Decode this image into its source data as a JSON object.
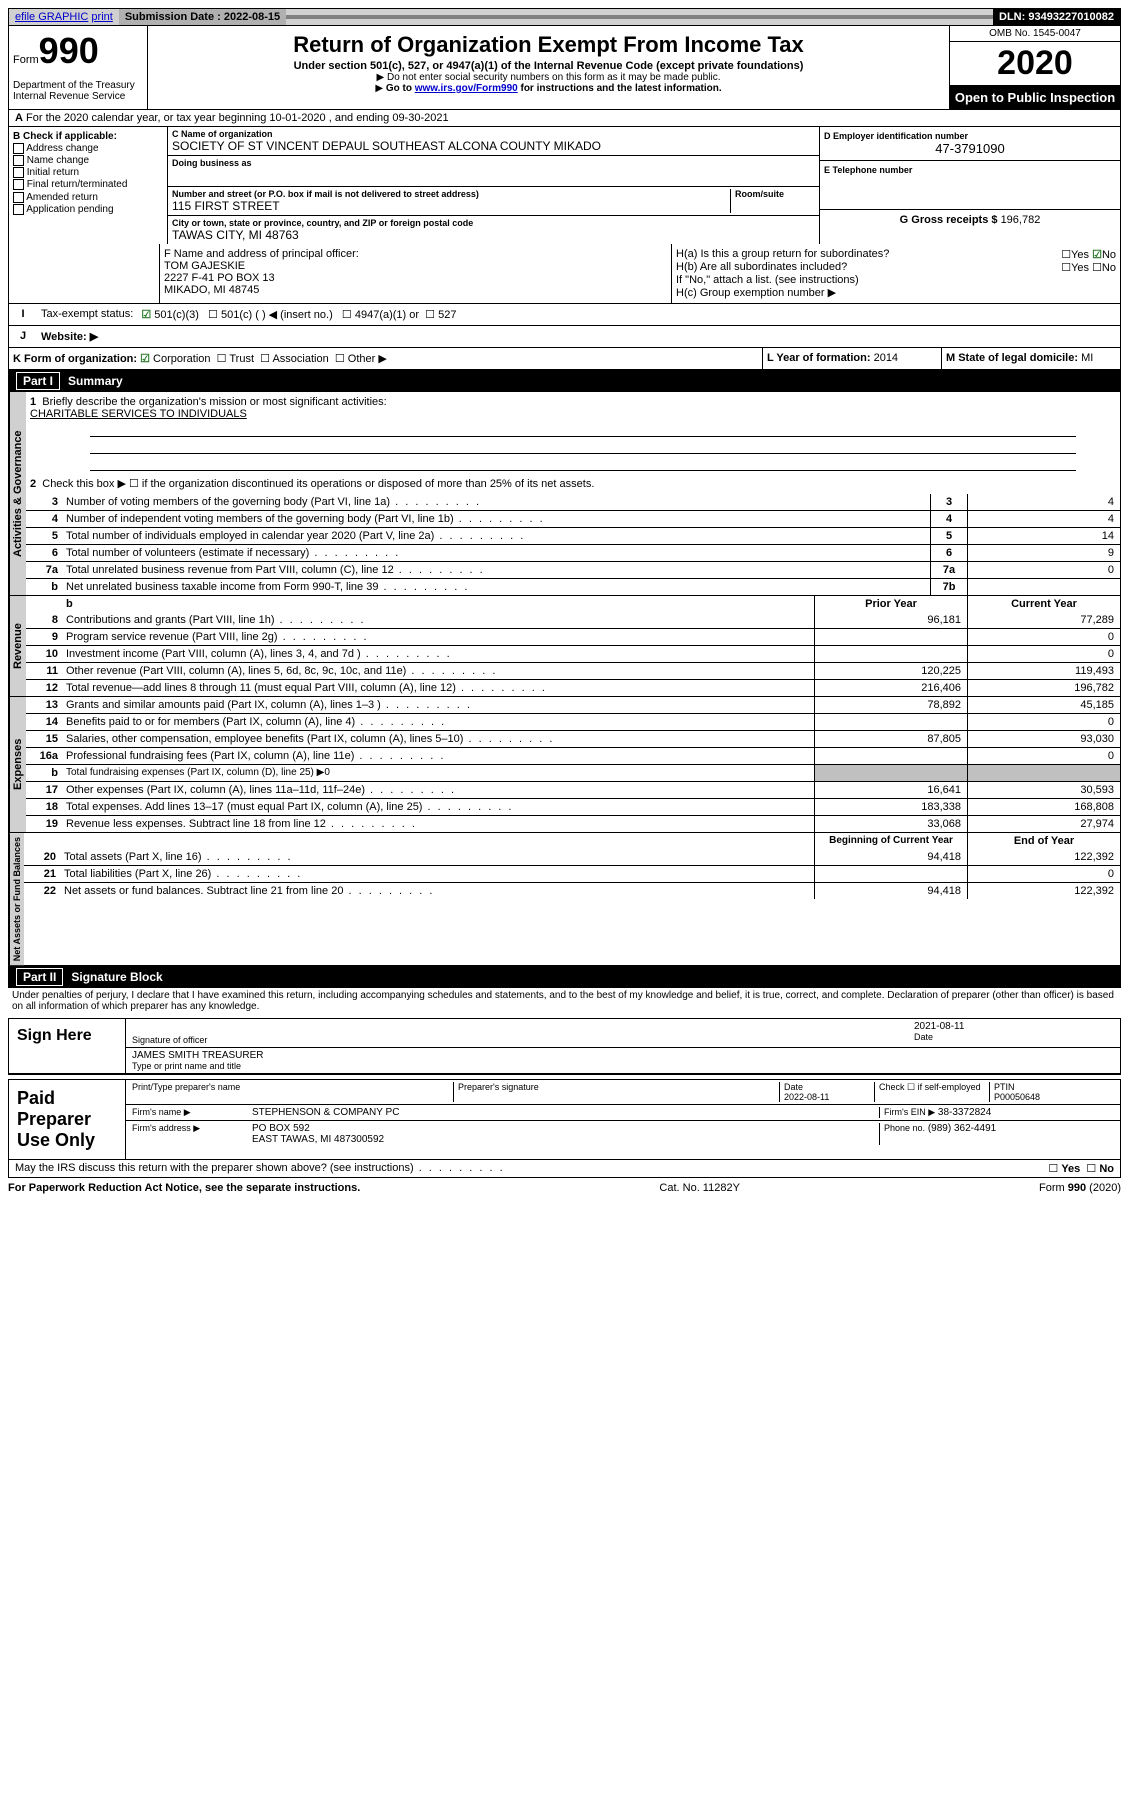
{
  "topbar": {
    "efile": "efile GRAPHIC",
    "print": "print",
    "sub_label": "Submission Date : 2022-08-15",
    "dln": "DLN: 93493227010082"
  },
  "header": {
    "form_label": "Form",
    "form_no": "990",
    "title": "Return of Organization Exempt From Income Tax",
    "sub1": "Under section 501(c), 527, or 4947(a)(1) of the Internal Revenue Code (except private foundations)",
    "sub2": "Do not enter social security numbers on this form as it may be made public.",
    "sub3a": "Go to ",
    "sub3_link": "www.irs.gov/Form990",
    "sub3b": " for instructions and the latest information.",
    "omb": "OMB No. 1545-0047",
    "year": "2020",
    "open": "Open to Public Inspection",
    "dept": "Department of the Treasury",
    "irs": "Internal Revenue Service"
  },
  "period": "For the 2020 calendar year, or tax year beginning 10-01-2020    , and ending 09-30-2021",
  "boxB": {
    "header": "B Check if applicable:",
    "items": [
      "Address change",
      "Name change",
      "Initial return",
      "Final return/terminated",
      "Amended return",
      "Application pending"
    ]
  },
  "boxC": {
    "label": "C Name of organization",
    "name": "SOCIETY OF ST VINCENT DEPAUL SOUTHEAST ALCONA COUNTY MIKADO",
    "dba_label": "Doing business as",
    "addr_label": "Number and street (or P.O. box if mail is not delivered to street address)",
    "room_label": "Room/suite",
    "addr": "115 FIRST STREET",
    "city_label": "City or town, state or province, country, and ZIP or foreign postal code",
    "city": "TAWAS CITY, MI  48763"
  },
  "boxD": {
    "label": "D Employer identification number",
    "val": "47-3791090"
  },
  "boxE": {
    "label": "E Telephone number"
  },
  "boxG": {
    "label": "G Gross receipts $",
    "val": "196,782"
  },
  "boxF": {
    "label": "F  Name and address of principal officer:",
    "name": "TOM GAJESKIE",
    "addr1": "2227 F-41 PO BOX 13",
    "addr2": "MIKADO, MI  48745"
  },
  "boxH": {
    "a": "H(a)  Is this a group return for subordinates?",
    "b": "H(b)  Are all subordinates included?",
    "note": "If \"No,\" attach a list. (see instructions)",
    "c": "H(c)  Group exemption number ▶"
  },
  "boxI": {
    "label": "Tax-exempt status:",
    "opts": [
      "501(c)(3)",
      "501(c) (  ) ◀ (insert no.)",
      "4947(a)(1) or",
      "527"
    ]
  },
  "boxJ": "Website: ▶",
  "boxK": {
    "label": "K Form of organization:",
    "opts": [
      "Corporation",
      "Trust",
      "Association",
      "Other ▶"
    ]
  },
  "boxL": {
    "label": "L Year of formation:",
    "val": "2014"
  },
  "boxM": {
    "label": "M State of legal domicile:",
    "val": "MI"
  },
  "part1": {
    "part": "Part I",
    "title": "Summary"
  },
  "line1": {
    "label": "Briefly describe the organization's mission or most significant activities:",
    "val": "CHARITABLE SERVICES TO INDIVIDUALS"
  },
  "line2": "Check this box ▶ ☐  if the organization discontinued its operations or disposed of more than 25% of its net assets.",
  "gov_lines": [
    {
      "n": "3",
      "d": "Number of voting members of the governing body (Part VI, line 1a)",
      "box": "3",
      "v": "4"
    },
    {
      "n": "4",
      "d": "Number of independent voting members of the governing body (Part VI, line 1b)",
      "box": "4",
      "v": "4"
    },
    {
      "n": "5",
      "d": "Total number of individuals employed in calendar year 2020 (Part V, line 2a)",
      "box": "5",
      "v": "14"
    },
    {
      "n": "6",
      "d": "Total number of volunteers (estimate if necessary)",
      "box": "6",
      "v": "9"
    },
    {
      "n": "7a",
      "d": "Total unrelated business revenue from Part VIII, column (C), line 12",
      "box": "7a",
      "v": "0"
    },
    {
      "n": "b",
      "d": "Net unrelated business taxable income from Form 990-T, line 39",
      "box": "7b",
      "v": ""
    }
  ],
  "col_hdrs": {
    "prior": "Prior Year",
    "current": "Current Year",
    "boy": "Beginning of Current Year",
    "eoy": "End of Year"
  },
  "rev_lines": [
    {
      "n": "8",
      "d": "Contributions and grants (Part VIII, line 1h)",
      "p": "96,181",
      "c": "77,289"
    },
    {
      "n": "9",
      "d": "Program service revenue (Part VIII, line 2g)",
      "p": "",
      "c": "0"
    },
    {
      "n": "10",
      "d": "Investment income (Part VIII, column (A), lines 3, 4, and 7d )",
      "p": "",
      "c": "0"
    },
    {
      "n": "11",
      "d": "Other revenue (Part VIII, column (A), lines 5, 6d, 8c, 9c, 10c, and 11e)",
      "p": "120,225",
      "c": "119,493"
    },
    {
      "n": "12",
      "d": "Total revenue—add lines 8 through 11 (must equal Part VIII, column (A), line 12)",
      "p": "216,406",
      "c": "196,782"
    }
  ],
  "exp_lines": [
    {
      "n": "13",
      "d": "Grants and similar amounts paid (Part IX, column (A), lines 1–3 )",
      "p": "78,892",
      "c": "45,185"
    },
    {
      "n": "14",
      "d": "Benefits paid to or for members (Part IX, column (A), line 4)",
      "p": "",
      "c": "0"
    },
    {
      "n": "15",
      "d": "Salaries, other compensation, employee benefits (Part IX, column (A), lines 5–10)",
      "p": "87,805",
      "c": "93,030"
    },
    {
      "n": "16a",
      "d": "Professional fundraising fees (Part IX, column (A), line 11e)",
      "p": "",
      "c": "0"
    },
    {
      "n": "b",
      "d": "Total fundraising expenses (Part IX, column (D), line 25) ▶0",
      "p": null,
      "c": null
    },
    {
      "n": "17",
      "d": "Other expenses (Part IX, column (A), lines 11a–11d, 11f–24e)",
      "p": "16,641",
      "c": "30,593"
    },
    {
      "n": "18",
      "d": "Total expenses. Add lines 13–17 (must equal Part IX, column (A), line 25)",
      "p": "183,338",
      "c": "168,808"
    },
    {
      "n": "19",
      "d": "Revenue less expenses. Subtract line 18 from line 12",
      "p": "33,068",
      "c": "27,974"
    }
  ],
  "net_lines": [
    {
      "n": "20",
      "d": "Total assets (Part X, line 16)",
      "p": "94,418",
      "c": "122,392"
    },
    {
      "n": "21",
      "d": "Total liabilities (Part X, line 26)",
      "p": "",
      "c": "0"
    },
    {
      "n": "22",
      "d": "Net assets or fund balances. Subtract line 21 from line 20",
      "p": "94,418",
      "c": "122,392"
    }
  ],
  "tabs": {
    "gov": "Activities & Governance",
    "rev": "Revenue",
    "exp": "Expenses",
    "net": "Net Assets or Fund Balances"
  },
  "part2": {
    "part": "Part II",
    "title": "Signature Block"
  },
  "penalties": "Under penalties of perjury, I declare that I have examined this return, including accompanying schedules and statements, and to the best of my knowledge and belief, it is true, correct, and complete. Declaration of preparer (other than officer) is based on all information of which preparer has any knowledge.",
  "sign": {
    "here": "Sign Here",
    "sig_label": "Signature of officer",
    "date": "2021-08-11",
    "date_label": "Date",
    "name": "JAMES SMITH  TREASURER",
    "type_label": "Type or print name and title"
  },
  "paid": {
    "label": "Paid Preparer Use Only",
    "h1": "Print/Type preparer's name",
    "h2": "Preparer's signature",
    "h3": "Date",
    "date": "2022-08-11",
    "h4": "Check ☐ if self-employed",
    "h5": "PTIN",
    "ptin": "P00050648",
    "firm_name_l": "Firm's name    ▶",
    "firm_name": "STEPHENSON & COMPANY PC",
    "firm_ein_l": "Firm's EIN ▶",
    "firm_ein": "38-3372824",
    "firm_addr_l": "Firm's address ▶",
    "firm_addr": "PO BOX 592",
    "firm_city": "EAST TAWAS, MI  487300592",
    "phone_l": "Phone no.",
    "phone": "(989) 362-4491"
  },
  "discuss": "May the IRS discuss this return with the preparer shown above? (see instructions)",
  "footer": {
    "left": "For Paperwork Reduction Act Notice, see the separate instructions.",
    "mid": "Cat. No. 11282Y",
    "right": "Form 990 (2020)"
  }
}
